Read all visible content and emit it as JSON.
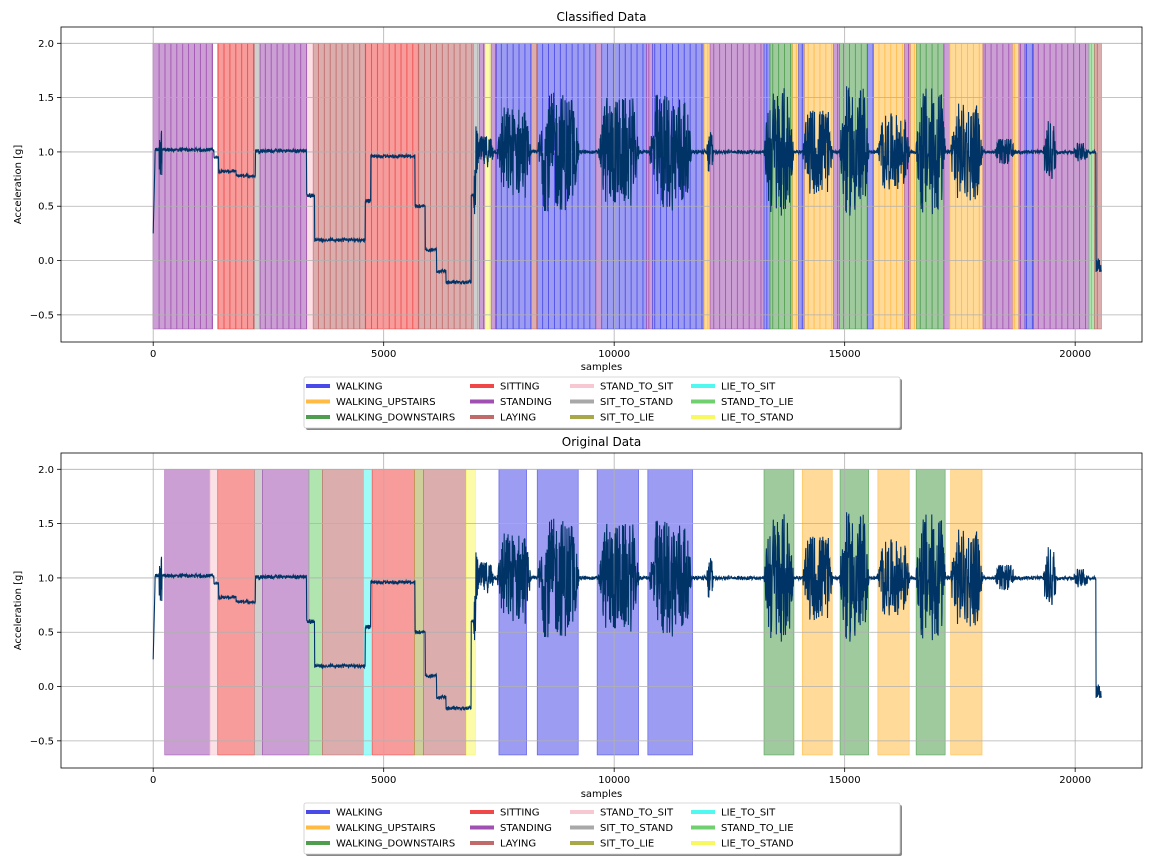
{
  "activity_colors": {
    "WALKING": "#4a4ae8",
    "WALKING_UPSTAIRS": "#ffbb44",
    "WALKING_DOWNSTAIRS": "#4f9e4f",
    "SITTING": "#f04848",
    "STANDING": "#a050b0",
    "LAYING": "#c06a6a",
    "STAND_TO_SIT": "#f8c8d2",
    "SIT_TO_STAND": "#a8a8a8",
    "SIT_TO_LIE": "#a8a848",
    "LIE_TO_SIT": "#50f8f0",
    "STAND_TO_LIE": "#70d070",
    "LIE_TO_STAND": "#f8f860"
  },
  "signal_color": "#003366",
  "chart_data": [
    {
      "type": "line",
      "title": "Classified Data",
      "xlabel": "samples",
      "ylabel": "Acceleration [g]",
      "xlim": [
        -2000,
        21450
      ],
      "ylim": [
        -0.75,
        2.15
      ],
      "xticks": [
        0,
        5000,
        10000,
        15000,
        20000
      ],
      "xtick_labels": [
        "0",
        "5000",
        "10000",
        "15000",
        "20000"
      ],
      "yticks": [
        -0.5,
        0.0,
        0.5,
        1.0,
        1.5,
        2.0
      ],
      "ytick_labels": [
        "−0.5",
        "0.0",
        "0.5",
        "1.0",
        "1.5",
        "2.0"
      ],
      "grid": true,
      "legend_position": "below",
      "legend": [
        "WALKING",
        "WALKING_UPSTAIRS",
        "WALKING_DOWNSTAIRS",
        "SITTING",
        "STANDING",
        "LAYING",
        "STAND_TO_SIT",
        "SIT_TO_STAND",
        "SIT_TO_LIE",
        "LIE_TO_SIT",
        "STAND_TO_LIE",
        "LIE_TO_STAND"
      ],
      "segment_window": 128,
      "activity_spans": [
        {
          "label": "STANDING",
          "x0": 0,
          "x1": 1290
        },
        {
          "label": "SITTING",
          "x0": 1400,
          "x1": 2200
        },
        {
          "label": "SIT_TO_STAND",
          "x0": 2200,
          "x1": 2330
        },
        {
          "label": "STANDING",
          "x0": 2330,
          "x1": 3330
        },
        {
          "label": "STAND_TO_SIT",
          "x0": 3330,
          "x1": 3470
        },
        {
          "label": "LAYING",
          "x0": 3470,
          "x1": 4600
        },
        {
          "label": "SITTING",
          "x0": 4600,
          "x1": 5750
        },
        {
          "label": "LAYING",
          "x0": 5750,
          "x1": 6950
        },
        {
          "label": "SIT_TO_STAND",
          "x0": 6950,
          "x1": 7080
        },
        {
          "label": "STANDING",
          "x0": 7080,
          "x1": 7200
        },
        {
          "label": "LIE_TO_STAND",
          "x0": 7200,
          "x1": 7330
        },
        {
          "label": "STANDING",
          "x0": 7330,
          "x1": 7450
        },
        {
          "label": "WALKING",
          "x0": 7450,
          "x1": 8200
        },
        {
          "label": "LAYING",
          "x0": 8200,
          "x1": 8330
        },
        {
          "label": "WALKING",
          "x0": 8330,
          "x1": 9600
        },
        {
          "label": "STANDING",
          "x0": 9600,
          "x1": 9730
        },
        {
          "label": "WALKING",
          "x0": 9730,
          "x1": 10700
        },
        {
          "label": "STANDING",
          "x0": 10700,
          "x1": 10830
        },
        {
          "label": "WALKING",
          "x0": 10830,
          "x1": 11950
        },
        {
          "label": "WALKING_UPSTAIRS",
          "x0": 11950,
          "x1": 12080
        },
        {
          "label": "STANDING",
          "x0": 12080,
          "x1": 13250
        },
        {
          "label": "WALKING",
          "x0": 13250,
          "x1": 13380
        },
        {
          "label": "WALKING_DOWNSTAIRS",
          "x0": 13380,
          "x1": 13870
        },
        {
          "label": "WALKING_UPSTAIRS",
          "x0": 13870,
          "x1": 14000
        },
        {
          "label": "WALKING",
          "x0": 14000,
          "x1": 14130
        },
        {
          "label": "WALKING_UPSTAIRS",
          "x0": 14130,
          "x1": 14760
        },
        {
          "label": "STANDING",
          "x0": 14760,
          "x1": 14890
        },
        {
          "label": "WALKING_DOWNSTAIRS",
          "x0": 14890,
          "x1": 15500
        },
        {
          "label": "WALKING",
          "x0": 15500,
          "x1": 15630
        },
        {
          "label": "WALKING_UPSTAIRS",
          "x0": 15630,
          "x1": 16300
        },
        {
          "label": "STANDING",
          "x0": 16300,
          "x1": 16430
        },
        {
          "label": "WALKING_UPSTAIRS",
          "x0": 16430,
          "x1": 16560
        },
        {
          "label": "WALKING_DOWNSTAIRS",
          "x0": 16560,
          "x1": 17150
        },
        {
          "label": "STANDING",
          "x0": 17150,
          "x1": 17280
        },
        {
          "label": "WALKING_UPSTAIRS",
          "x0": 17280,
          "x1": 18000
        },
        {
          "label": "STANDING",
          "x0": 18000,
          "x1": 18650
        },
        {
          "label": "WALKING_UPSTAIRS",
          "x0": 18650,
          "x1": 18780
        },
        {
          "label": "STANDING",
          "x0": 18780,
          "x1": 18910
        },
        {
          "label": "WALKING",
          "x0": 18910,
          "x1": 19100
        },
        {
          "label": "STANDING",
          "x0": 19100,
          "x1": 20300
        },
        {
          "label": "STAND_TO_LIE",
          "x0": 20300,
          "x1": 20420
        },
        {
          "label": "LAYING",
          "x0": 20420,
          "x1": 20570
        }
      ]
    },
    {
      "type": "line",
      "title": "Original Data",
      "xlabel": "samples",
      "ylabel": "Acceleration [g]",
      "xlim": [
        -2000,
        21450
      ],
      "ylim": [
        -0.75,
        2.15
      ],
      "xticks": [
        0,
        5000,
        10000,
        15000,
        20000
      ],
      "xtick_labels": [
        "0",
        "5000",
        "10000",
        "15000",
        "20000"
      ],
      "yticks": [
        -0.5,
        0.0,
        0.5,
        1.0,
        1.5,
        2.0
      ],
      "ytick_labels": [
        "−0.5",
        "0.0",
        "0.5",
        "1.0",
        "1.5",
        "2.0"
      ],
      "grid": true,
      "legend_position": "below",
      "legend": [
        "WALKING",
        "WALKING_UPSTAIRS",
        "WALKING_DOWNSTAIRS",
        "SITTING",
        "STANDING",
        "LAYING",
        "STAND_TO_SIT",
        "SIT_TO_STAND",
        "SIT_TO_LIE",
        "LIE_TO_SIT",
        "STAND_TO_LIE",
        "LIE_TO_STAND"
      ],
      "segment_window": 0,
      "activity_spans": [
        {
          "label": "STANDING",
          "x0": 250,
          "x1": 1230
        },
        {
          "label": "STAND_TO_SIT",
          "x0": 1230,
          "x1": 1400
        },
        {
          "label": "SITTING",
          "x0": 1400,
          "x1": 2200
        },
        {
          "label": "SIT_TO_STAND",
          "x0": 2200,
          "x1": 2370
        },
        {
          "label": "STANDING",
          "x0": 2370,
          "x1": 3380
        },
        {
          "label": "STAND_TO_LIE",
          "x0": 3380,
          "x1": 3670
        },
        {
          "label": "LAYING",
          "x0": 3670,
          "x1": 4560
        },
        {
          "label": "LIE_TO_SIT",
          "x0": 4560,
          "x1": 4750
        },
        {
          "label": "SITTING",
          "x0": 4750,
          "x1": 5670
        },
        {
          "label": "SIT_TO_LIE",
          "x0": 5670,
          "x1": 5860
        },
        {
          "label": "LAYING",
          "x0": 5860,
          "x1": 6790
        },
        {
          "label": "LIE_TO_STAND",
          "x0": 6790,
          "x1": 6990
        },
        {
          "label": "WALKING",
          "x0": 7500,
          "x1": 8100
        },
        {
          "label": "WALKING",
          "x0": 8330,
          "x1": 9220
        },
        {
          "label": "WALKING",
          "x0": 9630,
          "x1": 10530
        },
        {
          "label": "WALKING",
          "x0": 10730,
          "x1": 11700
        },
        {
          "label": "WALKING_DOWNSTAIRS",
          "x0": 13250,
          "x1": 13900
        },
        {
          "label": "WALKING_UPSTAIRS",
          "x0": 14080,
          "x1": 14730
        },
        {
          "label": "WALKING_DOWNSTAIRS",
          "x0": 14900,
          "x1": 15520
        },
        {
          "label": "WALKING_UPSTAIRS",
          "x0": 15720,
          "x1": 16400
        },
        {
          "label": "WALKING_DOWNSTAIRS",
          "x0": 16550,
          "x1": 17180
        },
        {
          "label": "WALKING_UPSTAIRS",
          "x0": 17300,
          "x1": 17980
        }
      ]
    }
  ]
}
